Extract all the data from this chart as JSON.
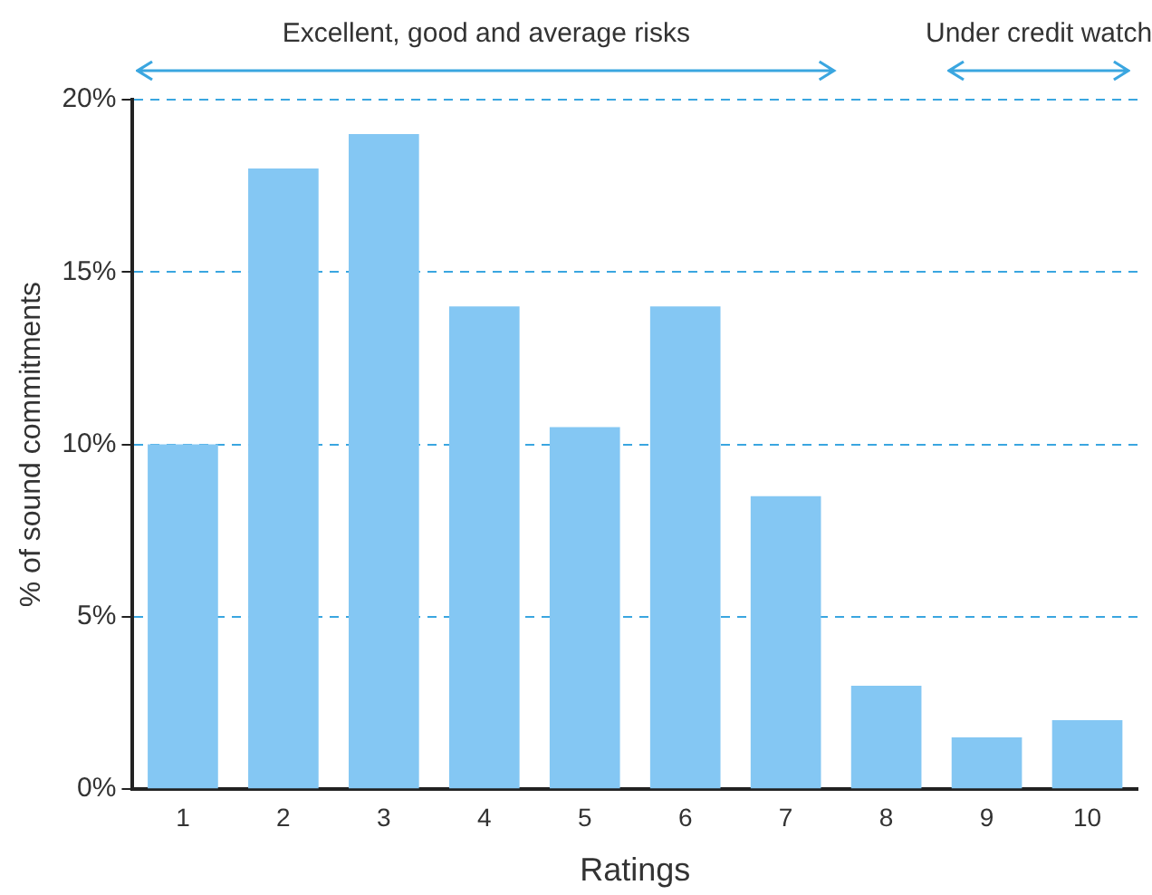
{
  "chart_data": {
    "type": "bar",
    "xlabel": "Ratings",
    "ylabel": "% of sound commitments",
    "categories": [
      "1",
      "2",
      "3",
      "4",
      "5",
      "6",
      "7",
      "8",
      "9",
      "10"
    ],
    "values": [
      10,
      18,
      19,
      14,
      10.5,
      14,
      8.5,
      3,
      1.5,
      2
    ],
    "color": "#84c7f3",
    "ylim": [
      0,
      20
    ],
    "yticks": [
      {
        "value": 0,
        "label": "0%"
      },
      {
        "value": 5,
        "label": "5%"
      },
      {
        "value": 10,
        "label": "10%"
      },
      {
        "value": 15,
        "label": "15%"
      },
      {
        "value": 20,
        "label": "20%"
      }
    ],
    "grid": "y",
    "legend": false,
    "annotations": [
      "Excellent, good and average risks",
      "Under credit watch"
    ]
  }
}
